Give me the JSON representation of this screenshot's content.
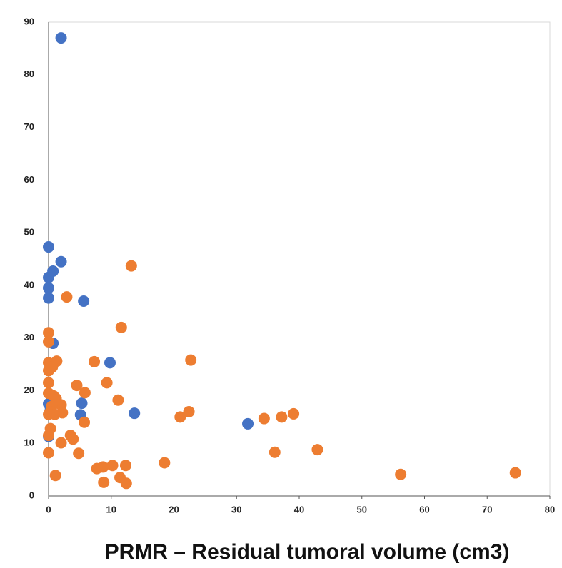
{
  "chart_data": {
    "type": "scatter",
    "x_label": "PRMR – Residual tumoral volume (cm3)",
    "xlim": [
      0,
      80
    ],
    "xticks": [
      0,
      10,
      20,
      30,
      40,
      50,
      60,
      70,
      80
    ],
    "ylim": [
      0,
      90
    ],
    "yticks": [
      0,
      10,
      20,
      30,
      40,
      50,
      60,
      70,
      80,
      90
    ],
    "grid": false,
    "series": [
      {
        "color": "#4472c4",
        "x": [
          2,
          0,
          2,
          0.7,
          0,
          0,
          0,
          5.6,
          0.7,
          9.8,
          13.7,
          5.3,
          5.1,
          31.8,
          0,
          0,
          0.3
        ],
        "values": [
          87,
          47.3,
          44.5,
          42.7,
          41.5,
          39.5,
          37.6,
          37,
          29,
          25.3,
          15.7,
          17.6,
          15.4,
          13.7,
          17.5,
          11.3,
          16.5
        ]
      },
      {
        "color": "#ed7d31",
        "x": [
          13.2,
          2.9,
          11.6,
          0,
          0,
          22.7,
          7.3,
          1.3,
          0,
          0.6,
          0,
          0,
          4.5,
          9.3,
          5.8,
          11.1,
          0,
          0.8,
          1.2,
          2,
          0.5,
          0.3,
          2.2,
          1,
          0,
          22.4,
          21,
          34.4,
          37.2,
          39.1,
          5.7,
          0.3,
          3.5,
          3.9,
          0,
          2,
          0,
          4.8,
          36.1,
          42.9,
          18.5,
          12.3,
          10.2,
          8.7,
          7.7,
          1.1,
          11.4,
          8.8,
          12.4,
          56.2,
          74.5
        ],
        "values": [
          43.7,
          37.8,
          32,
          31,
          29.3,
          25.8,
          25.5,
          25.6,
          25.3,
          24.5,
          23.8,
          21.5,
          21,
          21.5,
          19.6,
          18.2,
          19.5,
          19,
          18.5,
          17.3,
          17,
          16,
          15.8,
          15.5,
          15.5,
          16,
          15,
          14.7,
          15,
          15.6,
          14,
          12.8,
          11.5,
          10.8,
          11.5,
          10.1,
          8.2,
          8.1,
          8.3,
          8.8,
          6.3,
          5.8,
          5.8,
          5.5,
          5.2,
          3.9,
          3.5,
          2.6,
          2.4,
          4.1,
          4.4
        ]
      }
    ]
  }
}
